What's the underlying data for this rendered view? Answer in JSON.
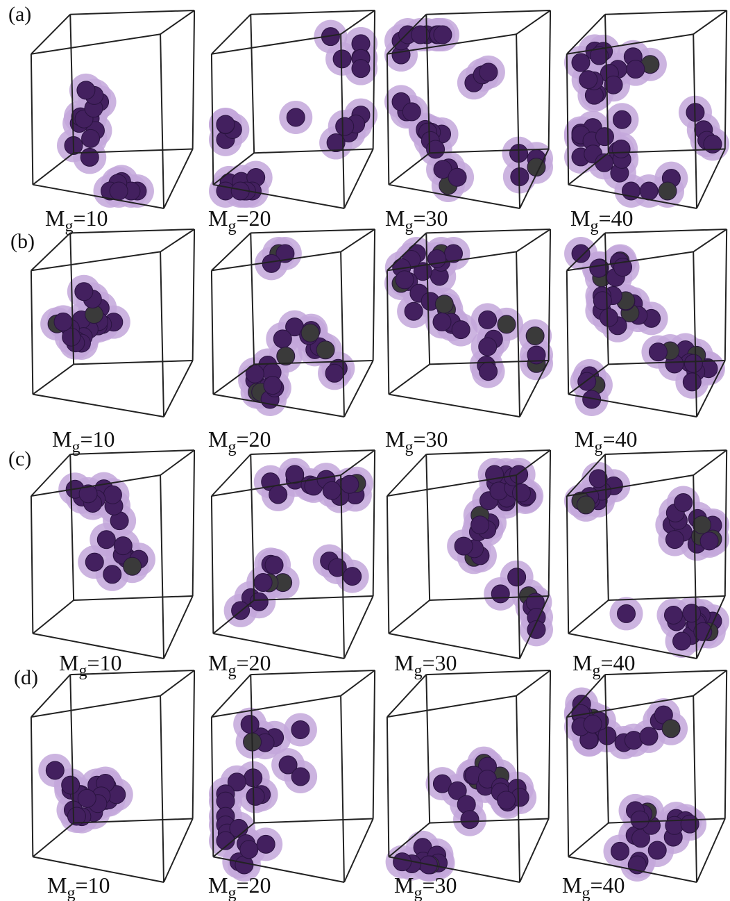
{
  "figure": {
    "rows": [
      {
        "label": "(a)",
        "panels": [
          {
            "symbol": "M",
            "subscript": "g",
            "rest": "=10"
          },
          {
            "symbol": "M",
            "subscript": "g",
            "rest": "=20"
          },
          {
            "symbol": "M",
            "subscript": "g",
            "rest": "=30"
          },
          {
            "symbol": "M",
            "subscript": "g",
            "rest": "=40"
          }
        ]
      },
      {
        "label": "(b)",
        "panels": [
          {
            "symbol": "M",
            "subscript": "g",
            "rest": "=10"
          },
          {
            "symbol": "M",
            "subscript": "g",
            "rest": "=20"
          },
          {
            "symbol": "M",
            "subscript": "g",
            "rest": "=30"
          },
          {
            "symbol": "M",
            "subscript": "g",
            "rest": "=40"
          }
        ]
      },
      {
        "label": "(c)",
        "panels": [
          {
            "symbol": "M",
            "subscript": "g",
            "rest": "=10"
          },
          {
            "symbol": "M",
            "subscript": "g",
            "rest": "=20"
          },
          {
            "symbol": "M",
            "subscript": "g",
            "rest": "=30"
          },
          {
            "symbol": "M",
            "subscript": "g",
            "rest": "=40"
          }
        ]
      },
      {
        "label": "(d)",
        "panels": [
          {
            "symbol": "M",
            "subscript": "g",
            "rest": "=10"
          },
          {
            "symbol": "M",
            "subscript": "g",
            "rest": "=20"
          },
          {
            "symbol": "M",
            "subscript": "g",
            "rest": "=30"
          },
          {
            "symbol": "M",
            "subscript": "g",
            "rest": "=40"
          }
        ]
      }
    ]
  }
}
